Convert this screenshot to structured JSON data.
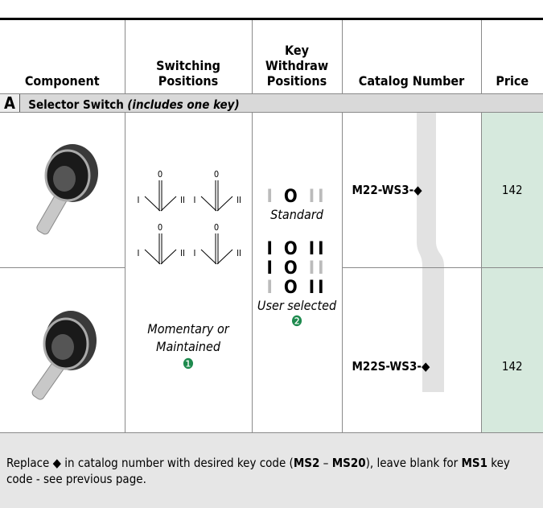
{
  "header": {
    "columns": [
      "Component",
      "Switching Positions",
      "Key Withdraw Positions",
      "Catalog Number",
      "Price"
    ]
  },
  "section": {
    "letter": "A",
    "title": "Selector Switch",
    "note": "(includes one key)"
  },
  "switching": {
    "diagrams": [
      {
        "left": "I",
        "top": "0",
        "right": "II"
      },
      {
        "left": "I",
        "top": "0",
        "right": "II"
      },
      {
        "left": "I",
        "top": "0",
        "right": "II"
      },
      {
        "left": "I",
        "top": "0",
        "right": "II"
      }
    ],
    "caption": "Momentary or Maintained",
    "footnote": "❶"
  },
  "key_withdraw": {
    "standard": {
      "positions": [
        "I",
        "O",
        "II"
      ],
      "active": [
        false,
        true,
        false
      ],
      "label": "Standard"
    },
    "user_selected": {
      "rows": [
        {
          "positions": [
            "I",
            "O",
            "II"
          ],
          "active": [
            true,
            true,
            true
          ]
        },
        {
          "positions": [
            "I",
            "O",
            "II"
          ],
          "active": [
            true,
            true,
            false
          ]
        },
        {
          "positions": [
            "I",
            "O",
            "II"
          ],
          "active": [
            false,
            true,
            true
          ]
        }
      ],
      "label": "User selected",
      "footnote": "❷"
    }
  },
  "rows": [
    {
      "catalog": "M22-WS3-◆",
      "price": 142
    },
    {
      "catalog": "M22S-WS3-◆",
      "price": 142
    }
  ],
  "footer": {
    "segments": [
      {
        "text": "Replace ◆ in catalog number with desired key code (",
        "bold": false
      },
      {
        "text": "MS2",
        "bold": true
      },
      {
        "text": " – ",
        "bold": false
      },
      {
        "text": "MS20",
        "bold": true
      },
      {
        "text": "), leave blank for ",
        "bold": false
      },
      {
        "text": "MS1",
        "bold": true
      },
      {
        "text": " key code - see previous page.",
        "bold": false
      }
    ]
  }
}
